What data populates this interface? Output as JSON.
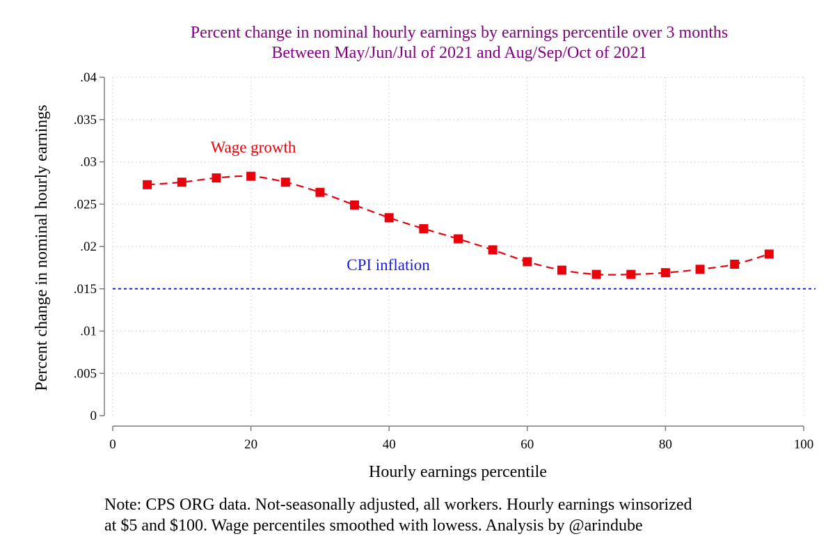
{
  "chart_data": {
    "type": "line",
    "title": [
      "Percent change in nominal hourly earnings by earnings percentile over 3 months",
      "Between May/Jun/Jul of 2021 and Aug/Sep/Oct of 2021"
    ],
    "xlabel": "Hourly earnings percentile",
    "ylabel": "Percent change in nominal hourly earnings",
    "xlim": [
      0,
      100
    ],
    "ylim": [
      0,
      0.04
    ],
    "x_ticks": [
      0,
      20,
      40,
      60,
      80,
      100
    ],
    "x_tick_labels": [
      "0",
      "20",
      "40",
      "60",
      "80",
      "100"
    ],
    "y_ticks": [
      0,
      0.005,
      0.01,
      0.015,
      0.02,
      0.025,
      0.03,
      0.035,
      0.04
    ],
    "y_tick_labels": [
      "0",
      ".005",
      ".01",
      ".015",
      ".02",
      ".025",
      ".03",
      ".035",
      ".04"
    ],
    "grid": true,
    "series": [
      {
        "name": "Wage growth",
        "label": "Wage growth",
        "color": "#e8000b",
        "x": [
          5,
          10,
          15,
          20,
          25,
          30,
          35,
          40,
          45,
          50,
          55,
          60,
          65,
          70,
          75,
          80,
          85,
          90,
          95
        ],
        "values": [
          0.0273,
          0.0276,
          0.0281,
          0.0283,
          0.0276,
          0.0264,
          0.0249,
          0.0234,
          0.0221,
          0.0209,
          0.0196,
          0.0182,
          0.0172,
          0.0167,
          0.0167,
          0.0169,
          0.0173,
          0.0179,
          0.0191
        ]
      }
    ],
    "reference_lines": [
      {
        "name": "CPI inflation",
        "label": "CPI inflation",
        "y": 0.015,
        "color": "#1a1adc"
      }
    ],
    "colors": {
      "title": "#800080",
      "wage": "#e8000b",
      "cpi": "#1a1adc",
      "grid": "#cfcfcf",
      "axis": "#7a7a7a"
    }
  },
  "note": [
    "Note: CPS ORG data. Not-seasonally adjusted, all workers. Hourly earnings winsorized",
    "at $5 and $100. Wage percentiles smoothed with lowess. Analysis by @arindube"
  ]
}
